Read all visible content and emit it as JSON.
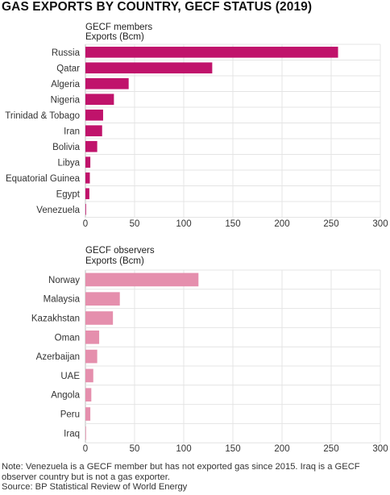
{
  "title": "GAS EXPORTS BY COUNTRY, GECF STATUS (2019)",
  "chart_data": [
    {
      "type": "bar",
      "orientation": "horizontal",
      "subtitle": "GECF members",
      "unit_label": "Exports (Bcm)",
      "color": "#c0136b",
      "categories": [
        "Russia",
        "Qatar",
        "Algeria",
        "Nigeria",
        "Trinidad & Tobago",
        "Iran",
        "Bolivia",
        "Libya",
        "Equatorial Guinea",
        "Egypt",
        "Venezuela"
      ],
      "values": [
        257,
        129,
        44,
        29,
        18,
        17,
        12,
        5,
        4.5,
        4,
        0
      ],
      "xlim": [
        0,
        300
      ],
      "xticks": [
        0,
        50,
        100,
        150,
        200,
        250,
        300
      ],
      "grid": true
    },
    {
      "type": "bar",
      "orientation": "horizontal",
      "subtitle": "GECF observers",
      "unit_label": "Exports (Bcm)",
      "color": "#e58fad",
      "categories": [
        "Norway",
        "Malaysia",
        "Kazakhstan",
        "Oman",
        "Azerbaijan",
        "UAE",
        "Angola",
        "Peru",
        "Iraq"
      ],
      "values": [
        115,
        35,
        28,
        14,
        12,
        8,
        6,
        5,
        0
      ],
      "xlim": [
        0,
        300
      ],
      "xticks": [
        0,
        50,
        100,
        150,
        200,
        250,
        300
      ],
      "grid": true
    }
  ],
  "footer": {
    "note": "Note: Venezuela is a GECF member but has not exported gas since 2015. Iraq is a GECF observer country but is not a gas exporter.",
    "source": "Source: BP Statistical Review of World Energy"
  }
}
